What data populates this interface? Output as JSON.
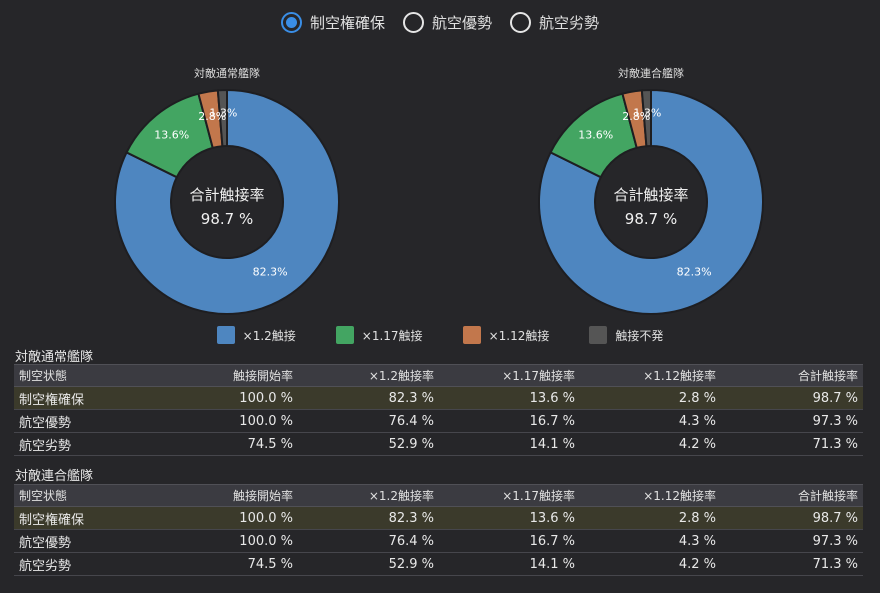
{
  "radio_options": [
    {
      "label": "制空権確保",
      "selected": true
    },
    {
      "label": "航空優勢",
      "selected": false
    },
    {
      "label": "航空劣勢",
      "selected": false
    }
  ],
  "colors": {
    "series": [
      "#4e86c0",
      "#43a562",
      "#c2774c",
      "#555555"
    ],
    "accent": "#3a8ee6",
    "highlight_row": "#3b3a2b",
    "background": "#262629"
  },
  "chart_data": [
    {
      "type": "pie",
      "title": "対敵通常艦隊",
      "center_label": "合計触接率",
      "center_value": "98.7 %",
      "categories": [
        "×1.2触接",
        "×1.17触接",
        "×1.12触接",
        "触接不発"
      ],
      "values": [
        82.3,
        13.6,
        2.8,
        1.3
      ],
      "slice_labels": [
        "82.3%",
        "13.6%",
        "2.8%",
        "1.3%"
      ]
    },
    {
      "type": "pie",
      "title": "対敵連合艦隊",
      "center_label": "合計触接率",
      "center_value": "98.7 %",
      "categories": [
        "×1.2触接",
        "×1.17触接",
        "×1.12触接",
        "触接不発"
      ],
      "values": [
        82.3,
        13.6,
        2.8,
        1.3
      ],
      "slice_labels": [
        "82.3%",
        "13.6%",
        "2.8%",
        "1.3%"
      ]
    }
  ],
  "legend": [
    "×1.2触接",
    "×1.17触接",
    "×1.12触接",
    "触接不発"
  ],
  "tables": [
    {
      "title": "対敵通常艦隊",
      "headers": [
        "制空状態",
        "触接開始率",
        "×1.2触接率",
        "×1.17触接率",
        "×1.12触接率",
        "合計触接率"
      ],
      "rows": [
        [
          "制空権確保",
          "100.0 %",
          "82.3 %",
          "13.6 %",
          "2.8 %",
          "98.7 %"
        ],
        [
          "航空優勢",
          "100.0 %",
          "76.4 %",
          "16.7 %",
          "4.3 %",
          "97.3 %"
        ],
        [
          "航空劣勢",
          "74.5 %",
          "52.9 %",
          "14.1 %",
          "4.2 %",
          "71.3 %"
        ]
      ]
    },
    {
      "title": "対敵連合艦隊",
      "headers": [
        "制空状態",
        "触接開始率",
        "×1.2触接率",
        "×1.17触接率",
        "×1.12触接率",
        "合計触接率"
      ],
      "rows": [
        [
          "制空権確保",
          "100.0 %",
          "82.3 %",
          "13.6 %",
          "2.8 %",
          "98.7 %"
        ],
        [
          "航空優勢",
          "100.0 %",
          "76.4 %",
          "16.7 %",
          "4.3 %",
          "97.3 %"
        ],
        [
          "航空劣勢",
          "74.5 %",
          "52.9 %",
          "14.1 %",
          "4.2 %",
          "71.3 %"
        ]
      ]
    }
  ]
}
